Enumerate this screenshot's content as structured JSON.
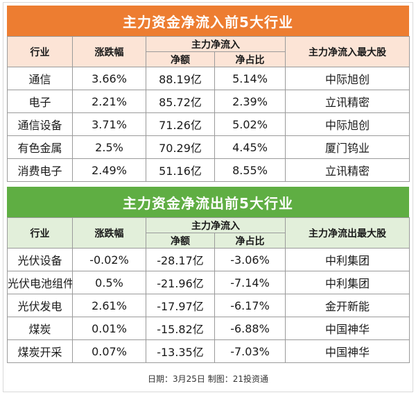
{
  "inflow": {
    "title": "主力资金净流入前5大行业",
    "headers": {
      "industry": "行业",
      "change": "涨跌幅",
      "net_group": "主力净流入",
      "net_amount": "净额",
      "net_ratio": "净占比",
      "top_stock": "主力净流入最大股"
    },
    "rows": [
      {
        "industry": "通信",
        "change": "3.66%",
        "amount": "88.19亿",
        "ratio": "5.14%",
        "stock": "中际旭创"
      },
      {
        "industry": "电子",
        "change": "2.21%",
        "amount": "85.72亿",
        "ratio": "2.39%",
        "stock": "立讯精密"
      },
      {
        "industry": "通信设备",
        "change": "3.71%",
        "amount": "71.26亿",
        "ratio": "5.02%",
        "stock": "中际旭创"
      },
      {
        "industry": "有色金属",
        "change": "2.5%",
        "amount": "70.29亿",
        "ratio": "4.45%",
        "stock": "厦门钨业"
      },
      {
        "industry": "消费电子",
        "change": "2.49%",
        "amount": "51.16亿",
        "ratio": "8.55%",
        "stock": "立讯精密"
      }
    ]
  },
  "outflow": {
    "title": "主力资金净流出前5大行业",
    "headers": {
      "industry": "行业",
      "change": "涨跌幅",
      "net_group": "主力净流入",
      "net_amount": "净额",
      "net_ratio": "净占比",
      "top_stock": "主力净流出最大股"
    },
    "rows": [
      {
        "industry": "光伏设备",
        "change": "-0.02%",
        "amount": "-28.17亿",
        "ratio": "-3.06%",
        "stock": "中利集团"
      },
      {
        "industry": "光伏电池组件",
        "change": "0.5%",
        "amount": "-21.96亿",
        "ratio": "-7.14%",
        "stock": "中利集团"
      },
      {
        "industry": "光伏发电",
        "change": "2.61%",
        "amount": "-17.97亿",
        "ratio": "-6.17%",
        "stock": "金开新能"
      },
      {
        "industry": "煤炭",
        "change": "0.01%",
        "amount": "-15.82亿",
        "ratio": "-6.88%",
        "stock": "中国神华"
      },
      {
        "industry": "煤炭开采",
        "change": "0.07%",
        "amount": "-13.35亿",
        "ratio": "-7.03%",
        "stock": "中国神华"
      }
    ]
  },
  "footer": "日期：3月25日 制图：21投资通",
  "colors": {
    "inflow_title_bg": "#ed7d31",
    "inflow_header_bg": "#fce4d6",
    "outflow_title_bg": "#5fae43",
    "outflow_header_bg": "#e2efda"
  }
}
